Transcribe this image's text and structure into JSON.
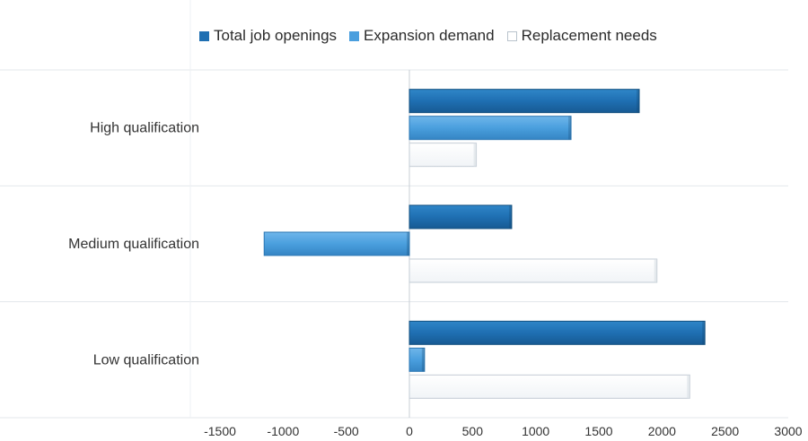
{
  "chart_data": {
    "type": "bar",
    "orientation": "horizontal",
    "categories": [
      "High qualification",
      "Medium qualification",
      "Low qualification"
    ],
    "series": [
      {
        "name": "Total job openings",
        "color": "#1f6fb2",
        "values": [
          1820,
          810,
          2340
        ]
      },
      {
        "name": "Expansion demand",
        "color": "#4a9fde",
        "values": [
          1280,
          -1150,
          120
        ]
      },
      {
        "name": "Replacement needs",
        "color": "#ffffff",
        "values": [
          530,
          1960,
          2220
        ]
      }
    ],
    "xlim": [
      -1500,
      3000
    ],
    "xticks": [
      "-1500",
      "-1000",
      "-500",
      "0",
      "500",
      "1000",
      "1500",
      "2000",
      "2500",
      "3000"
    ],
    "legend_position": "top",
    "gridlines": "horizontal category separators"
  }
}
